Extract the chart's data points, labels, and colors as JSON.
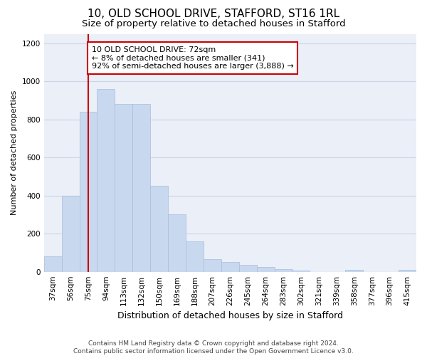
{
  "title1": "10, OLD SCHOOL DRIVE, STAFFORD, ST16 1RL",
  "title2": "Size of property relative to detached houses in Stafford",
  "xlabel": "Distribution of detached houses by size in Stafford",
  "ylabel": "Number of detached properties",
  "categories": [
    "37sqm",
    "56sqm",
    "75sqm",
    "94sqm",
    "113sqm",
    "132sqm",
    "150sqm",
    "169sqm",
    "188sqm",
    "207sqm",
    "226sqm",
    "245sqm",
    "264sqm",
    "283sqm",
    "302sqm",
    "321sqm",
    "339sqm",
    "358sqm",
    "377sqm",
    "396sqm",
    "415sqm"
  ],
  "values": [
    80,
    400,
    840,
    960,
    880,
    880,
    450,
    300,
    160,
    65,
    50,
    35,
    25,
    15,
    5,
    0,
    0,
    10,
    0,
    0,
    10
  ],
  "bar_color": "#c8d9ef",
  "bar_edge_color": "#aabbdd",
  "marker_color": "#cc0000",
  "annotation_text": "10 OLD SCHOOL DRIVE: 72sqm\n← 8% of detached houses are smaller (341)\n92% of semi-detached houses are larger (3,888) →",
  "annotation_box_color": "#ffffff",
  "annotation_box_edge_color": "#cc0000",
  "ylim": [
    0,
    1250
  ],
  "yticks": [
    0,
    200,
    400,
    600,
    800,
    1000,
    1200
  ],
  "grid_color": "#cdd5e5",
  "background_color": "#eaeff8",
  "footer": "Contains HM Land Registry data © Crown copyright and database right 2024.\nContains public sector information licensed under the Open Government Licence v3.0.",
  "title1_fontsize": 11,
  "title2_fontsize": 9.5,
  "xlabel_fontsize": 9,
  "ylabel_fontsize": 8,
  "tick_fontsize": 7.5,
  "annotation_fontsize": 8,
  "footer_fontsize": 6.5
}
